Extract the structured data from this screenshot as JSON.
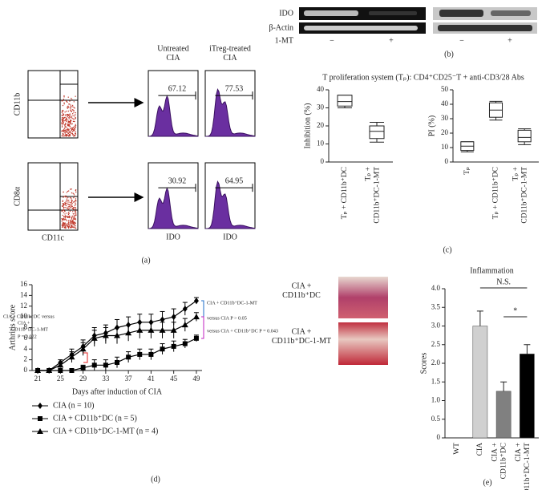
{
  "panel_a": {
    "label": "(a)",
    "y_labels": [
      "CD11b",
      "CD8α"
    ],
    "x_label": "CD11c",
    "columns": [
      "Untreated\nCIA",
      "iTreg-treated\nCIA"
    ],
    "gates": [
      [
        67.12,
        77.53
      ],
      [
        30.92,
        64.95
      ]
    ],
    "histogram_x_labels": [
      "IDO",
      "IDO"
    ]
  },
  "panel_b": {
    "label": "(b)",
    "rows": [
      "IDO",
      "β-Actin"
    ],
    "treatment": "1-MT",
    "lanes": [
      "−",
      "+",
      "−",
      "+"
    ]
  },
  "panel_c": {
    "label": "(c)",
    "title": "T proliferation system (Tₚ): CD4⁺CD25⁻T + anti-CD3/28 Abs"
  },
  "panel_d": {
    "label": "(d)"
  },
  "panel_e": {
    "label": "(e)",
    "images": [
      "CIA +\nCD11b⁺DC",
      "CIA +\nCD11b⁺DC-1-MT"
    ]
  },
  "chart_data": [
    {
      "type": "box",
      "ylabel": "Inhibition (%)",
      "categories": [
        "Tₚ + CD11b⁺DC",
        "Tₚ +\nCD11b⁺DC-1-MT"
      ],
      "boxes": [
        {
          "min": 30,
          "q1": 31,
          "median": 33.5,
          "q3": 37,
          "max": 37
        },
        {
          "min": 11,
          "q1": 13,
          "median": 17,
          "q3": 20,
          "max": 22
        }
      ],
      "ylim": [
        0,
        40
      ],
      "yticks": [
        0,
        10,
        20,
        30,
        40
      ]
    },
    {
      "type": "box",
      "ylabel": "PI (%)",
      "categories": [
        "Tₚ",
        "Tₚ + CD11b⁺DC",
        "Tₚ +\nCD11b⁺DC-1-MT"
      ],
      "boxes": [
        {
          "min": 7,
          "q1": 8,
          "median": 11,
          "q3": 14,
          "max": 14
        },
        {
          "min": 29,
          "q1": 31,
          "median": 36,
          "q3": 41,
          "max": 42
        },
        {
          "min": 12,
          "q1": 14,
          "median": 17,
          "q3": 22,
          "max": 23
        }
      ],
      "ylim": [
        0,
        50
      ],
      "yticks": [
        0,
        10,
        20,
        30,
        40,
        50
      ]
    },
    {
      "type": "line",
      "xlabel": "Days after induction of CIA",
      "ylabel": "Arthritis score",
      "x": [
        21,
        23,
        25,
        27,
        29,
        31,
        33,
        35,
        37,
        39,
        41,
        43,
        45,
        47,
        49
      ],
      "series": [
        {
          "name": "CIA (n = 10)",
          "marker": "diamond",
          "color": "#000000",
          "values": [
            0,
            0,
            1.5,
            3,
            4.5,
            6.5,
            7,
            8,
            8.5,
            9,
            9,
            9.5,
            10,
            11.5,
            13
          ],
          "errors": [
            0,
            0,
            0.5,
            1,
            1.2,
            1.5,
            1.5,
            1.5,
            1.5,
            1.5,
            1.5,
            1.5,
            1.5,
            1.2,
            0.6
          ]
        },
        {
          "name": "CIA + CD11b⁺DC (n = 5)",
          "marker": "square",
          "color": "#000000",
          "values": [
            0,
            0,
            0,
            0,
            0.5,
            1,
            1,
            1.5,
            2.5,
            3,
            3,
            4,
            4.5,
            5,
            6
          ],
          "errors": [
            0,
            0,
            0,
            0,
            0.5,
            1,
            1,
            1,
            1,
            1,
            1,
            1,
            1,
            0.8,
            0.6
          ]
        },
        {
          "name": "CIA + CD11b⁺DC-1-MT (n = 4)",
          "marker": "triangle",
          "color": "#000000",
          "values": [
            0,
            0,
            1,
            2.5,
            4,
            6,
            6.5,
            6.5,
            7,
            7.5,
            7.5,
            7.5,
            7.5,
            8.5,
            10
          ],
          "errors": [
            0,
            0,
            0.5,
            1,
            1.2,
            1.5,
            1.5,
            1.5,
            1.5,
            1.5,
            1.5,
            1.5,
            1.5,
            1.2,
            0.8
          ]
        }
      ],
      "xlim": [
        20,
        50
      ],
      "xticks": [
        21,
        25,
        29,
        33,
        37,
        41,
        45,
        49
      ],
      "ylim": [
        0,
        16
      ],
      "yticks": [
        0,
        2,
        4,
        6,
        8,
        10,
        12,
        14,
        16
      ],
      "legend": "below",
      "annotations": [
        {
          "text": "CIA + CD11b⁺DC-1-MT",
          "color": "#000000"
        },
        {
          "text": "versus CIA P > 0.05",
          "color": "#1e6ec8"
        },
        {
          "text": "versus CIA + CD11b⁺DC P = 0.043",
          "color": "#c020c0"
        },
        {
          "text": "CIA + CD11b⁺DC versus",
          "color": "#e02020"
        },
        {
          "text": "CIA +",
          "color": "#e02020"
        },
        {
          "text": "CD11b⁺DC-1-MT",
          "color": "#e02020"
        },
        {
          "text": "P = 0.022",
          "color": "#e02020"
        }
      ]
    },
    {
      "type": "bar",
      "title": "Inflammation",
      "ylabel": "Scores",
      "categories": [
        "WT",
        "CIA",
        "CIA +\nCD11b⁺DC",
        "CIA +\nCD11b⁺DC-1-MT"
      ],
      "values": [
        0,
        3,
        1.25,
        2.25
      ],
      "errors": [
        0,
        0.4,
        0.25,
        0.25
      ],
      "colors": [
        "#d0d0d0",
        "#d0d0d0",
        "#808080",
        "#000000"
      ],
      "ylim": [
        0,
        4
      ],
      "yticks": [
        0,
        0.5,
        {
          "value": 1,
          "label": "1.0"
        },
        1.5,
        {
          "value": 2,
          "label": "2.0"
        },
        2.5,
        {
          "value": 3,
          "label": "3.0"
        },
        3.5,
        {
          "value": 4,
          "label": "4.0"
        }
      ],
      "annotations": [
        {
          "text": "N.S.",
          "color": "#000000"
        },
        {
          "text": "*",
          "color": "#000000"
        }
      ]
    }
  ]
}
